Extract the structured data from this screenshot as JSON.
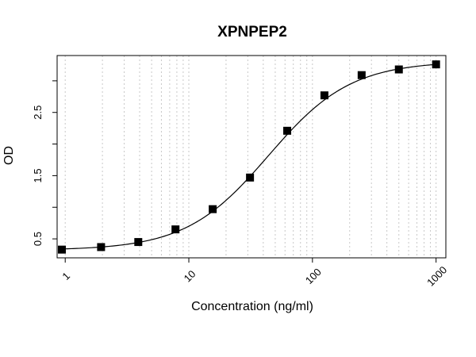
{
  "chart_data": {
    "type": "scatter",
    "title": "XPNPEP2",
    "xlabel": "Concentration (ng/ml)",
    "ylabel": "OD",
    "x_scale": "log",
    "xlim": [
      0.86,
      1200
    ],
    "ylim": [
      0.2,
      3.4
    ],
    "x_ticks": [
      1,
      10,
      100,
      1000
    ],
    "x_tick_labels": [
      "1",
      "10",
      "100",
      "1000"
    ],
    "y_ticks": [
      0.5,
      1.0,
      1.5,
      2.0,
      2.5,
      3.0
    ],
    "y_tick_labels": [
      "0.5",
      "",
      "1.5",
      "",
      "2.5",
      ""
    ],
    "grid": "vertical dotted at log minor ticks",
    "legend": "none",
    "series": [
      {
        "marker": "square",
        "color": "#000000",
        "x": [
          0.94,
          1.95,
          3.9,
          7.8,
          15.6,
          31.25,
          62.5,
          125,
          250,
          500,
          1000
        ],
        "y": [
          0.33,
          0.37,
          0.45,
          0.65,
          0.97,
          1.47,
          2.21,
          2.77,
          3.09,
          3.18,
          3.26
        ]
      }
    ],
    "fit_curve": {
      "type": "4PL",
      "color": "#000000",
      "bottom": 0.32,
      "top": 3.31,
      "ec50": 44,
      "hill": 1.3
    }
  }
}
